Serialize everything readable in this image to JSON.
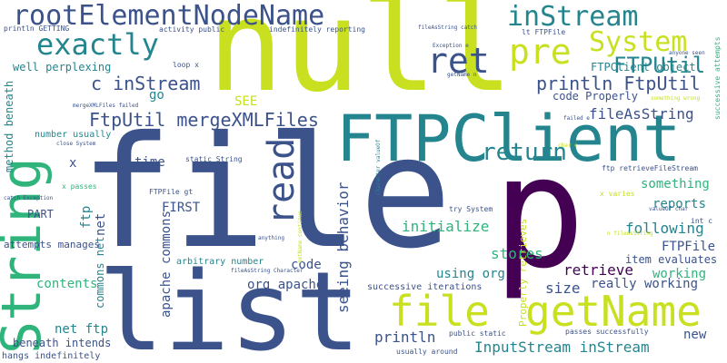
{
  "cloud": {
    "background": "#ffffff",
    "palette": {
      "yellow": "#c8e020",
      "green": "#2fb47c",
      "teal": "#25858e",
      "blue": "#3b528b",
      "purple": "#440154"
    },
    "words": {
      "null": "null",
      "file": "file",
      "list": "list",
      "string": "String",
      "p": "p",
      "ftpclient": "FTPClient",
      "getname": "getName",
      "file_right": "file",
      "root_element": "rootElementNodeName",
      "instream": "inStream",
      "exactly": "exactly",
      "system": "System",
      "pre": "pre",
      "ret": "ret",
      "read": "read",
      "return": "return",
      "ftputil": "FTPUtil",
      "c_instream": "c inStream",
      "println_ftputil": "println FtpUtil",
      "ftputil_merge": "FtpUtil mergeXMLFiles",
      "fileasstring": "fileAsString",
      "ftpclient_object": "FTPClient object",
      "code_properly": "code Properly",
      "something": "something",
      "reports": "reports",
      "seeing_behavior": "seeing behavior",
      "initialize": "initialize",
      "following": "following",
      "ftpfile": "FTPFile",
      "working": "working",
      "retrieve": "retrieve",
      "stores": "stores",
      "inputstream_instream": "InputStream inStream",
      "size": "size",
      "really_working": "really working",
      "code": "code",
      "using_org": "using org",
      "org_apache": "org apache",
      "apache_commons": "apache commons",
      "commons_net": "commons net",
      "first": "FIRST",
      "contents": "contents",
      "net_ftp": "net ftp",
      "beneath_intends": "beneath intends",
      "println": "println",
      "new": "new",
      "successive_iterations": "successive iterations",
      "item_evaluates": "item evaluates",
      "properly_retrieves": "Properly retrieves",
      "well_perplexing": "well perplexing",
      "method_beneath": "method beneath",
      "go": "go",
      "see": "SEE",
      "time": "time",
      "x": "x",
      "part": "PART",
      "ftp": "ftp",
      "net": "net",
      "attempts_manages": "attempts manages",
      "hangs_indefinitely": "hangs indefinitely",
      "number_usually": "number usually",
      "arbitrary_number": "arbitrary number",
      "ftp_retrieve": "ftp retrieveFileStream",
      "static_string": "static String",
      "ftpfile_gt": "FTPFile gt",
      "try_system": "try System",
      "x_varies": "x varies",
      "int_c": "int c",
      "lt_ftpfile": "lt FTPFile",
      "println_getting": "println GETTING",
      "activity_public": "activity public",
      "indefinitely_reporting": "indefinitely reporting",
      "loop_x": "loop x",
      "x_passes": "x passes",
      "public_static": "public static",
      "passes_successfully": "passes successfully",
      "usually_around": "usually around",
      "successive_attempts": "successive attempts",
      "fileasstring_catch": "fileAsString catch",
      "exception_e": "Exception e",
      "getname_n": "getName n",
      "anyone_seen": "anyone seen",
      "something_wrong": "something wrong",
      "failed_e": "failed e",
      "merge_failed": "mergeXMLFiles failed",
      "close_system": "close System",
      "catch_exception": "catch Exception",
      "seen_anything": "seen anything",
      "getname_continue": "getName continue",
      "fileasstring_character": "fileAsString Character",
      "character_valueof": "Character valueOf",
      "char_c": "char c",
      "valueof_char": "valueOf char",
      "n_fileasstring": "n fileAsString"
    }
  }
}
